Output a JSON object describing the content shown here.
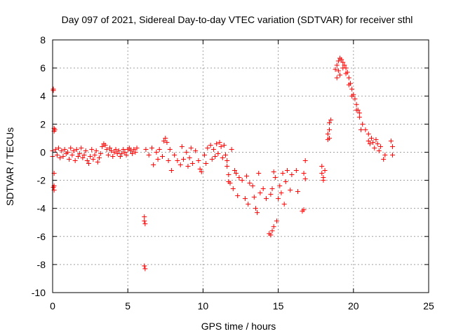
{
  "chart_data": {
    "type": "scatter",
    "title": "Day 097 of 2021, Sidereal Day-to-day VTEC variation (SDTVAR) for receiver sthl",
    "xlabel": "GPS time / hours",
    "ylabel": "SDTVAR / TECUs",
    "xlim": [
      0,
      25
    ],
    "ylim": [
      -10,
      8
    ],
    "xticks": [
      0,
      5,
      10,
      15,
      20,
      25
    ],
    "yticks": [
      -10,
      -8,
      -6,
      -4,
      -2,
      0,
      2,
      4,
      6,
      8
    ],
    "grid": true,
    "series": [
      {
        "name": "sthl",
        "color": "#ff0000",
        "marker": "plus",
        "points": [
          [
            0.0,
            0.1
          ],
          [
            0.05,
            4.5
          ],
          [
            0.05,
            4.4
          ],
          [
            0.1,
            1.7
          ],
          [
            0.1,
            1.5
          ],
          [
            0.15,
            1.6
          ],
          [
            0.1,
            -2.4
          ],
          [
            0.1,
            -2.7
          ],
          [
            0.05,
            -2.5
          ],
          [
            0.1,
            -1.5
          ],
          [
            0.0,
            -0.3
          ],
          [
            0.2,
            0.2
          ],
          [
            0.3,
            -0.2
          ],
          [
            0.4,
            0.3
          ],
          [
            0.5,
            -0.4
          ],
          [
            0.6,
            0.1
          ],
          [
            0.7,
            -0.3
          ],
          [
            0.8,
            0.2
          ],
          [
            0.9,
            -0.1
          ],
          [
            1.0,
            0.0
          ],
          [
            1.1,
            -0.5
          ],
          [
            1.2,
            0.3
          ],
          [
            1.3,
            -0.2
          ],
          [
            1.4,
            0.1
          ],
          [
            1.5,
            -0.6
          ],
          [
            1.6,
            0.2
          ],
          [
            1.7,
            -0.3
          ],
          [
            1.8,
            -0.1
          ],
          [
            1.9,
            0.3
          ],
          [
            2.0,
            -0.4
          ],
          [
            2.1,
            -0.2
          ],
          [
            2.2,
            0.1
          ],
          [
            2.3,
            -0.6
          ],
          [
            2.4,
            -0.8
          ],
          [
            2.5,
            -0.3
          ],
          [
            2.6,
            0.2
          ],
          [
            2.7,
            -0.5
          ],
          [
            2.8,
            -0.2
          ],
          [
            2.9,
            0.1
          ],
          [
            3.0,
            -0.7
          ],
          [
            3.1,
            -0.4
          ],
          [
            3.2,
            -0.1
          ],
          [
            3.3,
            0.4
          ],
          [
            3.4,
            0.6
          ],
          [
            3.5,
            0.5
          ],
          [
            3.6,
            0.2
          ],
          [
            3.7,
            -0.2
          ],
          [
            3.8,
            0.3
          ],
          [
            3.9,
            0.1
          ],
          [
            4.0,
            -0.3
          ],
          [
            4.1,
            0.0
          ],
          [
            4.2,
            0.2
          ],
          [
            4.3,
            -0.1
          ],
          [
            4.4,
            0.1
          ],
          [
            4.5,
            -0.3
          ],
          [
            4.6,
            -0.1
          ],
          [
            4.7,
            0.2
          ],
          [
            4.8,
            0.0
          ],
          [
            4.9,
            -0.2
          ],
          [
            5.0,
            0.2
          ],
          [
            5.1,
            0.3
          ],
          [
            5.2,
            0.1
          ],
          [
            5.3,
            -0.1
          ],
          [
            5.4,
            0.2
          ],
          [
            5.5,
            0.0
          ],
          [
            5.6,
            0.3
          ],
          [
            6.1,
            -4.6
          ],
          [
            6.1,
            -4.9
          ],
          [
            6.15,
            -5.1
          ],
          [
            6.1,
            -8.1
          ],
          [
            6.15,
            -8.3
          ],
          [
            6.2,
            0.2
          ],
          [
            6.4,
            -0.2
          ],
          [
            6.6,
            0.3
          ],
          [
            6.7,
            -0.9
          ],
          [
            6.9,
            0.0
          ],
          [
            7.0,
            -0.5
          ],
          [
            7.1,
            0.2
          ],
          [
            7.3,
            -0.3
          ],
          [
            7.4,
            0.8
          ],
          [
            7.5,
            1.0
          ],
          [
            7.6,
            0.7
          ],
          [
            7.7,
            -0.6
          ],
          [
            7.8,
            0.2
          ],
          [
            7.9,
            -1.3
          ],
          [
            8.1,
            -0.2
          ],
          [
            8.3,
            -0.6
          ],
          [
            8.5,
            -0.9
          ],
          [
            8.6,
            0.4
          ],
          [
            8.7,
            -0.5
          ],
          [
            8.9,
            0.0
          ],
          [
            9.0,
            -1.0
          ],
          [
            9.1,
            -0.4
          ],
          [
            9.2,
            0.3
          ],
          [
            9.3,
            -0.8
          ],
          [
            9.5,
            0.1
          ],
          [
            9.7,
            -0.6
          ],
          [
            9.8,
            -1.2
          ],
          [
            9.9,
            -1.4
          ],
          [
            10.1,
            -0.2
          ],
          [
            10.2,
            -0.8
          ],
          [
            10.3,
            0.3
          ],
          [
            10.5,
            0.5
          ],
          [
            10.6,
            -0.5
          ],
          [
            10.7,
            0.2
          ],
          [
            10.8,
            -0.3
          ],
          [
            10.9,
            0.6
          ],
          [
            11.0,
            -0.1
          ],
          [
            11.1,
            0.7
          ],
          [
            11.2,
            0.4
          ],
          [
            11.3,
            -0.4
          ],
          [
            11.4,
            0.5
          ],
          [
            11.5,
            -0.2
          ],
          [
            11.6,
            -0.6
          ],
          [
            11.6,
            -1.0
          ],
          [
            11.7,
            -1.6
          ],
          [
            11.7,
            -2.1
          ],
          [
            11.8,
            -2.2
          ],
          [
            11.9,
            0.2
          ],
          [
            12.0,
            -2.6
          ],
          [
            12.1,
            -1.3
          ],
          [
            12.2,
            -1.5
          ],
          [
            12.3,
            -3.1
          ],
          [
            12.4,
            -1.8
          ],
          [
            12.6,
            -2.0
          ],
          [
            12.8,
            -3.3
          ],
          [
            12.9,
            -1.7
          ],
          [
            13.0,
            -3.7
          ],
          [
            13.1,
            -2.2
          ],
          [
            13.3,
            -2.4
          ],
          [
            13.4,
            -3.2
          ],
          [
            13.5,
            -4.0
          ],
          [
            13.6,
            -4.3
          ],
          [
            13.7,
            -1.5
          ],
          [
            13.8,
            -2.9
          ],
          [
            14.0,
            -2.6
          ],
          [
            14.2,
            -3.3
          ],
          [
            14.4,
            -5.8
          ],
          [
            14.5,
            -5.9
          ],
          [
            14.6,
            -5.6
          ],
          [
            14.7,
            -5.3
          ],
          [
            14.5,
            -3.0
          ],
          [
            14.6,
            -2.6
          ],
          [
            14.7,
            -1.4
          ],
          [
            14.8,
            -1.8
          ],
          [
            14.9,
            -4.9
          ],
          [
            15.0,
            -3.3
          ],
          [
            15.1,
            -2.4
          ],
          [
            15.2,
            -2.9
          ],
          [
            15.3,
            -1.5
          ],
          [
            15.4,
            -3.7
          ],
          [
            15.5,
            -2.1
          ],
          [
            15.6,
            -1.3
          ],
          [
            15.8,
            -2.7
          ],
          [
            15.9,
            -1.6
          ],
          [
            16.2,
            -1.3
          ],
          [
            16.3,
            -2.8
          ],
          [
            16.6,
            -4.2
          ],
          [
            16.7,
            -4.1
          ],
          [
            16.8,
            -0.6
          ],
          [
            16.7,
            -1.5
          ],
          [
            16.8,
            -1.9
          ],
          [
            17.9,
            -1.0
          ],
          [
            17.9,
            -1.5
          ],
          [
            18.0,
            -1.8
          ],
          [
            18.0,
            -2.0
          ],
          [
            18.1,
            -1.3
          ],
          [
            18.3,
            0.9
          ],
          [
            18.3,
            1.3
          ],
          [
            18.4,
            1.6
          ],
          [
            18.4,
            2.1
          ],
          [
            18.5,
            2.3
          ],
          [
            18.4,
            1.0
          ],
          [
            18.8,
            5.9
          ],
          [
            18.9,
            6.2
          ],
          [
            19.0,
            6.5
          ],
          [
            19.1,
            6.7
          ],
          [
            19.2,
            6.6
          ],
          [
            19.3,
            6.4
          ],
          [
            19.4,
            6.2
          ],
          [
            19.5,
            6.0
          ],
          [
            19.6,
            5.7
          ],
          [
            19.7,
            5.3
          ],
          [
            19.8,
            4.9
          ],
          [
            19.9,
            4.5
          ],
          [
            20.0,
            4.1
          ],
          [
            20.1,
            3.8
          ],
          [
            20.2,
            3.4
          ],
          [
            20.3,
            3.0
          ],
          [
            20.4,
            2.8
          ],
          [
            20.4,
            2.5
          ],
          [
            18.9,
            5.3
          ],
          [
            19.0,
            5.8
          ],
          [
            19.1,
            5.5
          ],
          [
            19.3,
            6.0
          ],
          [
            19.5,
            5.6
          ],
          [
            19.7,
            4.8
          ],
          [
            19.9,
            4.0
          ],
          [
            20.2,
            3.0
          ],
          [
            20.5,
            1.6
          ],
          [
            20.6,
            2.0
          ],
          [
            20.8,
            1.6
          ],
          [
            21.0,
            1.3
          ],
          [
            21.0,
            0.8
          ],
          [
            21.1,
            0.6
          ],
          [
            21.2,
            1.0
          ],
          [
            21.3,
            0.7
          ],
          [
            21.4,
            0.3
          ],
          [
            21.5,
            0.9
          ],
          [
            21.6,
            0.6
          ],
          [
            21.7,
            0.1
          ],
          [
            21.8,
            0.4
          ],
          [
            22.0,
            -0.5
          ],
          [
            22.1,
            -0.2
          ],
          [
            22.5,
            0.8
          ],
          [
            22.6,
            0.4
          ],
          [
            22.6,
            -0.2
          ]
        ]
      }
    ]
  }
}
